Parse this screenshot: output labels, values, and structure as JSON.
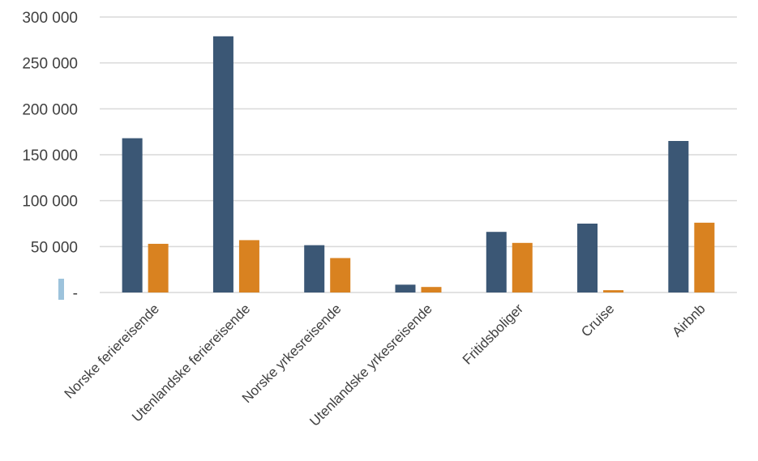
{
  "chart_data": {
    "type": "bar",
    "categories": [
      "Norske feriereisende",
      "Utenlandske feriereisende",
      "Norske yrkesreisende",
      "Utenlandske yrkesreisende",
      "Fritidsboliger",
      "Cruise",
      "Airbnb"
    ],
    "series": [
      {
        "values": [
          168000,
          279000,
          51500,
          8500,
          66000,
          75000,
          165000
        ],
        "color": "#3b5775"
      },
      {
        "values": [
          53000,
          57000,
          37500,
          6000,
          54000,
          2500,
          76000
        ],
        "color": "#d98220"
      }
    ],
    "ylim": [
      0,
      300000
    ],
    "yticks": [
      0,
      50000,
      100000,
      150000,
      200000,
      250000,
      300000
    ],
    "ytick_labels": [
      "-",
      "50 000",
      "100 000",
      "150 000",
      "200 000",
      "250 000",
      "300 000"
    ],
    "grid": true,
    "gridline_color": "#d9d9d9",
    "marker_color": "#9dc3dc"
  }
}
